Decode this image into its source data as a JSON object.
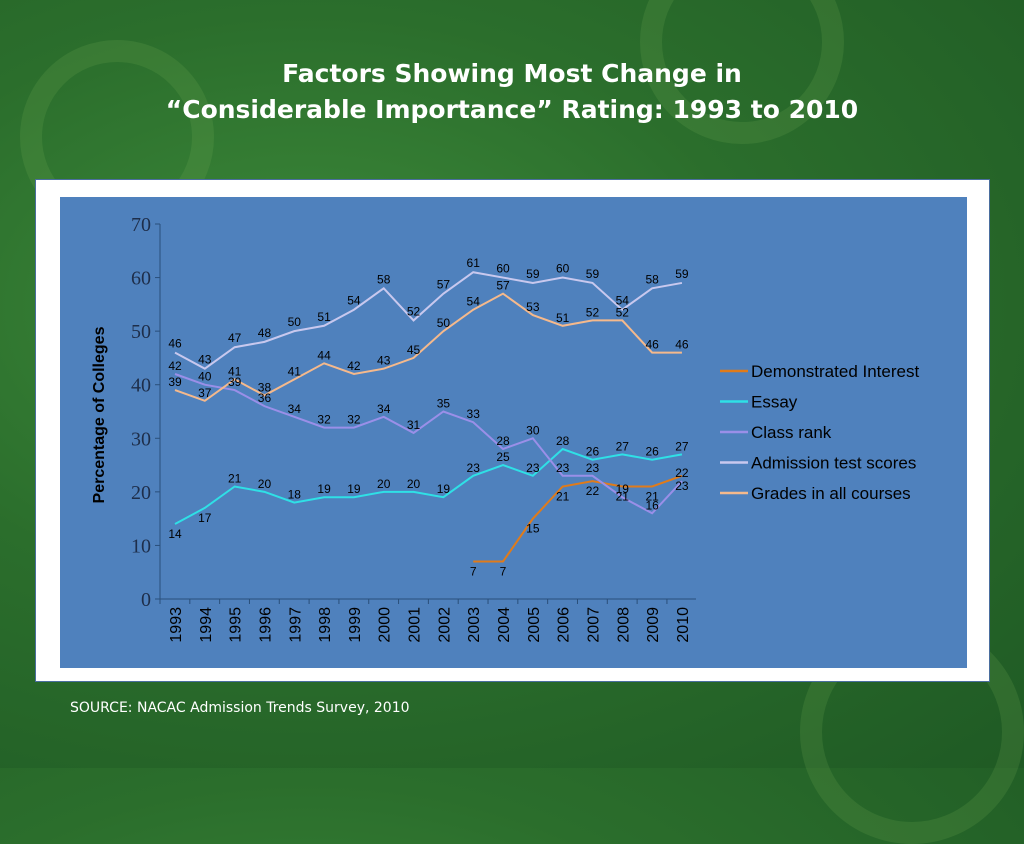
{
  "slide": {
    "title_line1": "Factors Showing Most Change in",
    "title_line2": "“Considerable Importance” Rating: 1993 to 2010",
    "source": "SOURCE: NACAC Admission Trends Survey, 2010"
  },
  "colors": {
    "plot_background": "#4f81bd",
    "demonstrated_interest": "#e07b1a",
    "essay": "#2fe0e6",
    "class_rank": "#9a8fe8",
    "admission_test_scores": "#c8c8ee",
    "grades_in_all_courses": "#f5b98c"
  },
  "chart_data": {
    "type": "line",
    "title": "",
    "xlabel": "",
    "ylabel": "Percentage of Colleges",
    "ylim": [
      0,
      70
    ],
    "yticks": [
      0,
      10,
      20,
      30,
      40,
      50,
      60,
      70
    ],
    "grid": false,
    "legend_position": "right",
    "x": [
      "1993",
      "1994",
      "1995",
      "1996",
      "1997",
      "1998",
      "1999",
      "2000",
      "2001",
      "2002",
      "2003",
      "2004",
      "2005",
      "2006",
      "2007",
      "2008",
      "2009",
      "2010"
    ],
    "series": [
      {
        "name": "Demonstrated Interest",
        "color": "#e07b1a",
        "values": [
          null,
          null,
          null,
          null,
          null,
          null,
          null,
          null,
          null,
          null,
          7,
          7,
          15,
          21,
          22,
          21,
          21,
          23
        ]
      },
      {
        "name": "Essay",
        "color": "#2fe0e6",
        "values": [
          14,
          17,
          21,
          20,
          18,
          19,
          19,
          20,
          20,
          19,
          23,
          25,
          23,
          28,
          26,
          27,
          26,
          27
        ]
      },
      {
        "name": "Class rank",
        "color": "#9a8fe8",
        "values": [
          42,
          40,
          39,
          36,
          34,
          32,
          32,
          34,
          31,
          35,
          33,
          28,
          30,
          23,
          23,
          19,
          16,
          22
        ]
      },
      {
        "name": "Admission test scores",
        "color": "#c8c8ee",
        "values": [
          46,
          43,
          47,
          48,
          50,
          51,
          54,
          58,
          52,
          57,
          61,
          60,
          59,
          60,
          59,
          54,
          58,
          59
        ]
      },
      {
        "name": "Grades in all courses",
        "color": "#f5b98c",
        "values": [
          39,
          37,
          41,
          38,
          41,
          44,
          42,
          43,
          45,
          50,
          54,
          57,
          53,
          51,
          52,
          52,
          46,
          46
        ]
      }
    ]
  }
}
